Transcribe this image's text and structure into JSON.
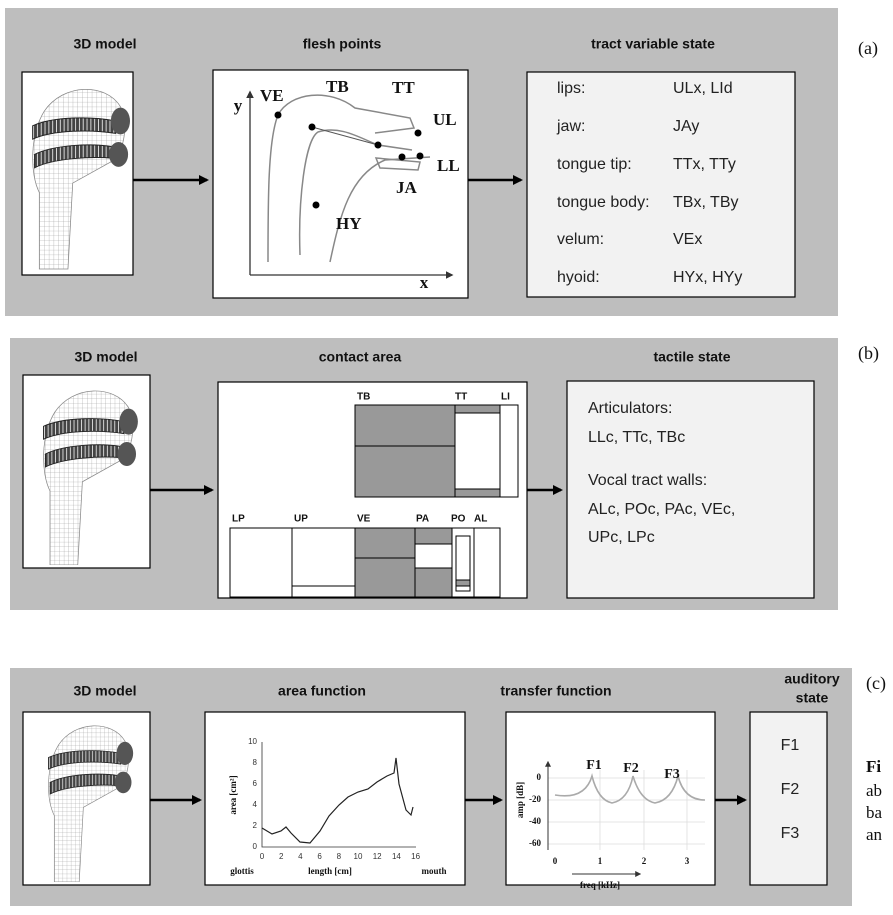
{
  "panels": [
    {
      "label": "(a)",
      "headers": [
        "3D model",
        "flesh points",
        "tract variable state"
      ],
      "flesh_points": {
        "axis_y": "y",
        "axis_x": "x",
        "points": [
          "VE",
          "TB",
          "TT",
          "UL",
          "LL",
          "JA",
          "HY"
        ]
      },
      "tract_variables": [
        [
          "lips:",
          "ULx, LId"
        ],
        [
          "jaw:",
          "JAy"
        ],
        [
          "tongue tip:",
          "TTx, TTy"
        ],
        [
          "tongue body:",
          "TBx, TBy"
        ],
        [
          "velum:",
          "VEx"
        ],
        [
          "hyoid:",
          "HYx, HYy"
        ]
      ]
    },
    {
      "label": "(b)",
      "headers": [
        "3D model",
        "contact area",
        "tactile state"
      ],
      "contact_regions_upper": [
        "TB",
        "TT",
        "LI"
      ],
      "contact_regions_lower": [
        "LP",
        "UP",
        "VE",
        "PA",
        "PO",
        "AL"
      ],
      "tactile_state": [
        "Articulators:",
        "LLc, TTc, TBc",
        "Vocal tract walls:",
        "ALc, POc, PAc, VEc,",
        "UPc, LPc"
      ]
    },
    {
      "label": "(c)",
      "headers": [
        "3D model",
        "area function",
        "transfer function"
      ],
      "auditory_header": [
        "auditory",
        "state"
      ],
      "area_function": {
        "ylabel": "area [cm²]",
        "xlabel": "length [cm]",
        "left_end": "glottis",
        "right_end": "mouth",
        "yticks": [
          "0",
          "2",
          "4",
          "6",
          "8",
          "10"
        ],
        "xticks": [
          "0",
          "2",
          "4",
          "6",
          "8",
          "10",
          "12",
          "14",
          "16"
        ]
      },
      "transfer_function": {
        "ylabel": "amp [dB]",
        "xlabel": "freq [kHz]",
        "yticks": [
          "0",
          "-20",
          "-40",
          "-60"
        ],
        "xticks": [
          "0",
          "1",
          "2",
          "3"
        ],
        "peaks": [
          "F1",
          "F2",
          "F3"
        ]
      },
      "auditory_state": [
        "F1",
        "F2",
        "F3"
      ]
    }
  ],
  "caption_fragments": [
    "Fi",
    "ab",
    "ba",
    "an"
  ]
}
